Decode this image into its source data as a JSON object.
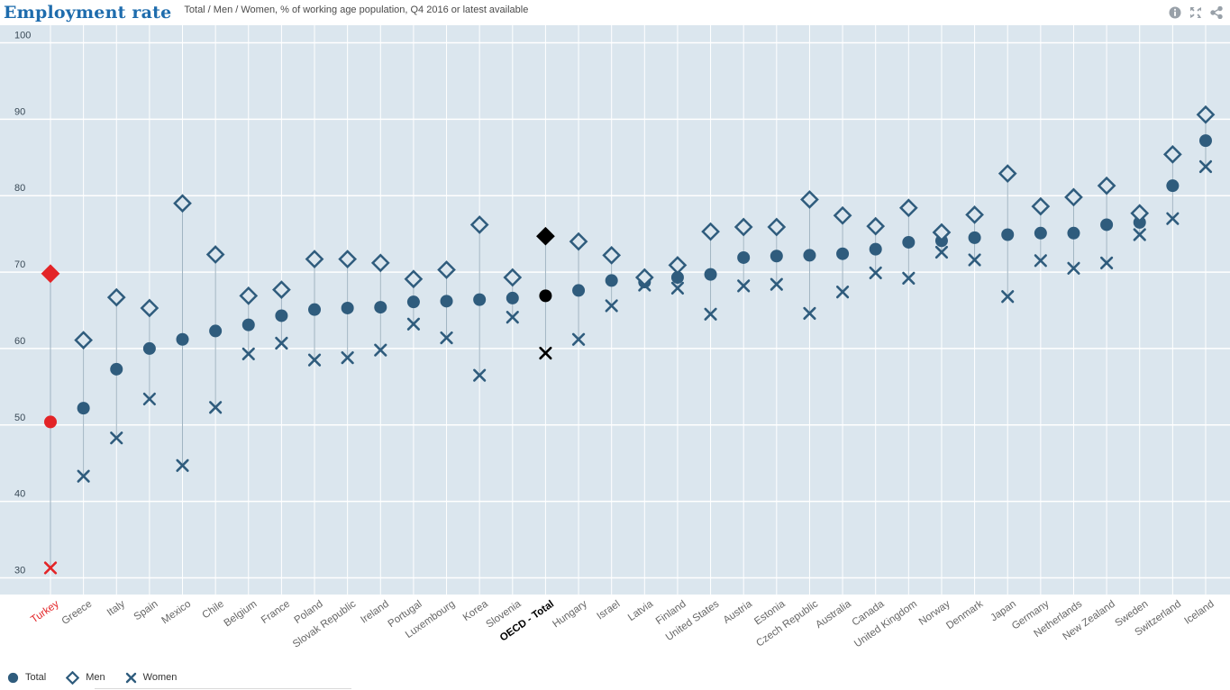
{
  "header": {
    "title": "Employment rate",
    "subtitle": "Total / Men / Women, % of working age population, Q4 2016 or latest available"
  },
  "legend": {
    "items": [
      {
        "label": "Total",
        "marker": "circle"
      },
      {
        "label": "Men",
        "marker": "diamond"
      },
      {
        "label": "Women",
        "marker": "x"
      }
    ]
  },
  "colors": {
    "accent_blue": "#2f5c7d",
    "highlight_red": "#e32427",
    "highlight_black": "#000000",
    "plot_background": "#dbe6ee",
    "gridline": "#ffffff",
    "connector": "#9fb3c1",
    "title_blue": "#1e6cad",
    "axis_label": "#3a4a57",
    "x_label": "#666666",
    "icon_gray": "#98a0a8"
  },
  "chart_data": {
    "type": "scatter",
    "title": "Employment rate",
    "subtitle": "Total / Men / Women, % of working age population, Q4 2016 or latest available",
    "ylabel": "% of working age population",
    "yticks": [
      30,
      40,
      50,
      60,
      70,
      80,
      90,
      100
    ],
    "ylim": [
      27.5,
      102
    ],
    "grid": true,
    "legend_position": "bottom-left",
    "series": [
      "Total",
      "Men",
      "Women"
    ],
    "countries": [
      {
        "name": "Turkey",
        "total": 50.4,
        "men": 69.8,
        "women": 31.3,
        "highlight": "red"
      },
      {
        "name": "Greece",
        "total": 52.2,
        "men": 61.1,
        "women": 43.3
      },
      {
        "name": "Italy",
        "total": 57.3,
        "men": 66.7,
        "women": 48.3
      },
      {
        "name": "Spain",
        "total": 60.0,
        "men": 65.3,
        "women": 53.4
      },
      {
        "name": "Mexico",
        "total": 61.2,
        "men": 79.0,
        "women": 44.7
      },
      {
        "name": "Chile",
        "total": 62.3,
        "men": 72.3,
        "women": 52.3
      },
      {
        "name": "Belgium",
        "total": 63.1,
        "men": 66.9,
        "women": 59.3
      },
      {
        "name": "France",
        "total": 64.3,
        "men": 67.7,
        "women": 60.7
      },
      {
        "name": "Poland",
        "total": 65.1,
        "men": 71.7,
        "women": 58.5
      },
      {
        "name": "Slovak Republic",
        "total": 65.3,
        "men": 71.7,
        "women": 58.8
      },
      {
        "name": "Ireland",
        "total": 65.4,
        "men": 71.2,
        "women": 59.8
      },
      {
        "name": "Portugal",
        "total": 66.1,
        "men": 69.1,
        "women": 63.2
      },
      {
        "name": "Luxembourg",
        "total": 66.2,
        "men": 70.3,
        "women": 61.4
      },
      {
        "name": "Korea",
        "total": 66.4,
        "men": 76.2,
        "women": 56.5
      },
      {
        "name": "Slovenia",
        "total": 66.6,
        "men": 69.3,
        "women": 64.1
      },
      {
        "name": "OECD - Total",
        "total": 66.9,
        "men": 74.7,
        "women": 59.4,
        "highlight": "black"
      },
      {
        "name": "Hungary",
        "total": 67.6,
        "men": 74.0,
        "women": 61.2
      },
      {
        "name": "Israel",
        "total": 68.9,
        "men": 72.2,
        "women": 65.6
      },
      {
        "name": "Latvia",
        "total": 68.7,
        "men": 69.3,
        "women": 68.3
      },
      {
        "name": "Finland",
        "total": 69.3,
        "men": 70.9,
        "women": 67.9
      },
      {
        "name": "United States",
        "total": 69.7,
        "men": 75.3,
        "women": 64.5
      },
      {
        "name": "Austria",
        "total": 71.9,
        "men": 75.9,
        "women": 68.2
      },
      {
        "name": "Estonia",
        "total": 72.1,
        "men": 75.9,
        "women": 68.4
      },
      {
        "name": "Czech Republic",
        "total": 72.2,
        "men": 79.5,
        "women": 64.6
      },
      {
        "name": "Australia",
        "total": 72.4,
        "men": 77.4,
        "women": 67.4
      },
      {
        "name": "Canada",
        "total": 73.0,
        "men": 76.0,
        "women": 69.9
      },
      {
        "name": "United Kingdom",
        "total": 73.9,
        "men": 78.4,
        "women": 69.2
      },
      {
        "name": "Norway",
        "total": 74.1,
        "men": 75.2,
        "women": 72.6
      },
      {
        "name": "Denmark",
        "total": 74.5,
        "men": 77.5,
        "women": 71.6
      },
      {
        "name": "Japan",
        "total": 74.9,
        "men": 82.9,
        "women": 66.8
      },
      {
        "name": "Germany",
        "total": 75.1,
        "men": 78.6,
        "women": 71.5
      },
      {
        "name": "Netherlands",
        "total": 75.1,
        "men": 79.8,
        "women": 70.5
      },
      {
        "name": "New Zealand",
        "total": 76.2,
        "men": 81.3,
        "women": 71.2
      },
      {
        "name": "Sweden",
        "total": 76.5,
        "men": 77.7,
        "women": 74.9
      },
      {
        "name": "Switzerland",
        "total": 81.3,
        "men": 85.4,
        "women": 77.0
      },
      {
        "name": "Iceland",
        "total": 87.2,
        "men": 90.6,
        "women": 83.8
      }
    ]
  }
}
